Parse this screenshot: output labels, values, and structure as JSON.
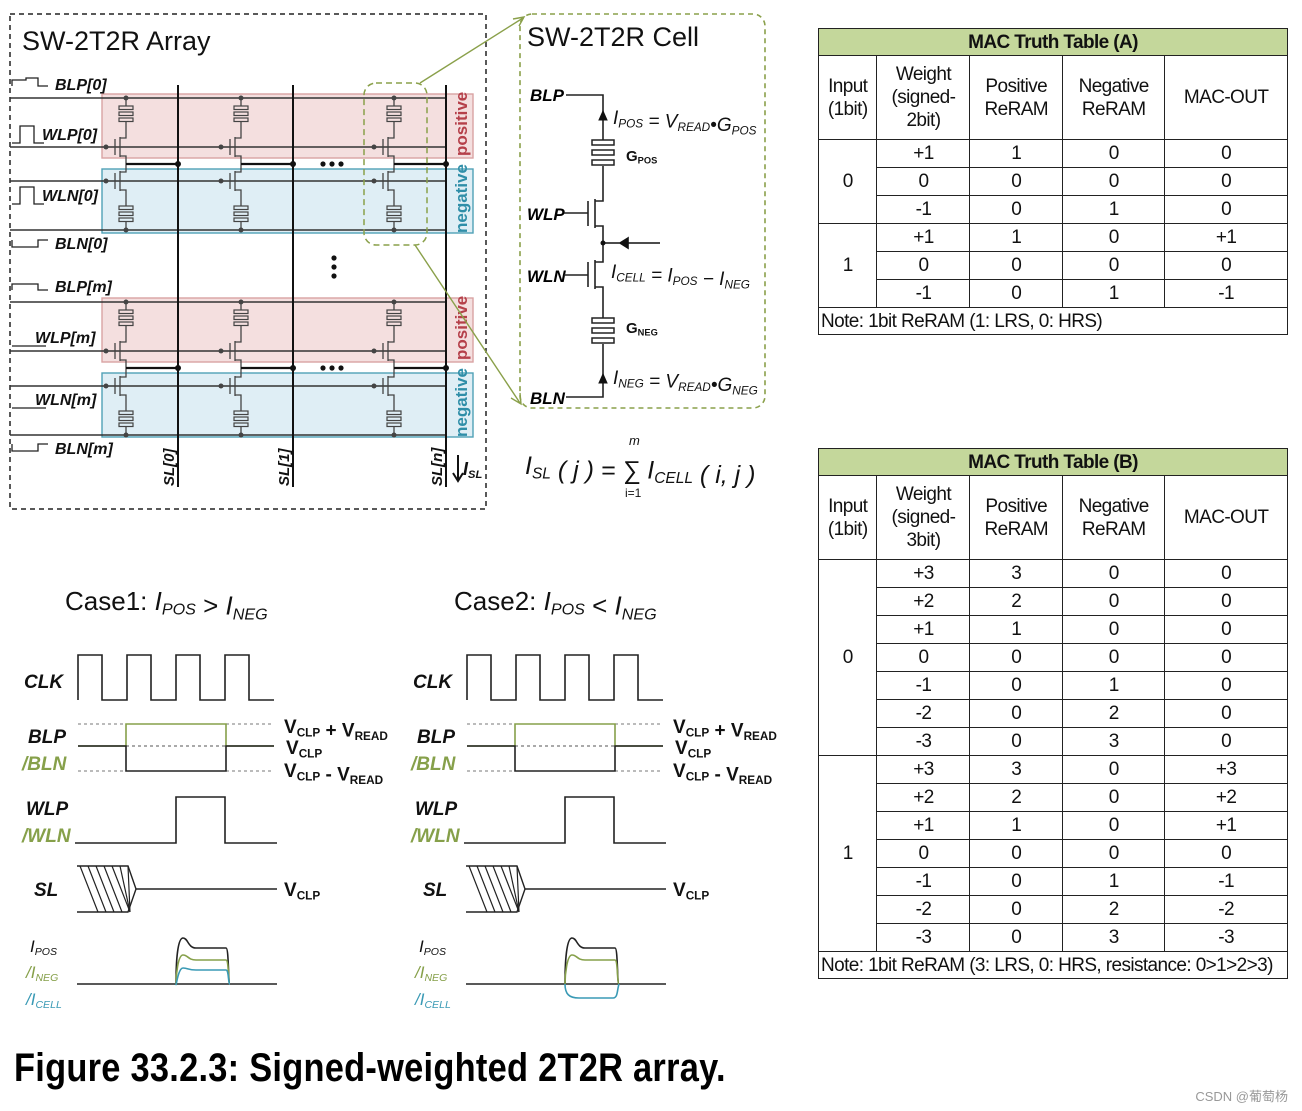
{
  "figure_caption": "Figure 33.2.3: Signed-weighted 2T2R array.",
  "watermark": "CSDN @葡萄杨",
  "colors": {
    "positive_fill": "#f3dcdc",
    "positive_stroke": "#d59a9a",
    "positive_text": "#b5404a",
    "negative_fill": "#dcedf4",
    "negative_stroke": "#3d97b0",
    "negative_text": "#2f8ea8",
    "highlight": "#8aa04a",
    "green_signal": "#86a04a",
    "teal_signal": "#3a9ab5",
    "table_title_fill": "#c4d79b"
  },
  "array": {
    "title": "SW-2T2R Array",
    "row_labels": [
      "BLP[0]",
      "WLP[0]",
      "WLN[0]",
      "BLN[0]",
      "BLP[m]",
      "WLP[m]",
      "WLN[m]",
      "BLN[m]"
    ],
    "column_labels": [
      "SL[0]",
      "SL[1]",
      "SL[n]"
    ],
    "positive_label": "positive",
    "negative_label": "negative",
    "current_label": [
      [
        "I",
        ""
      ],
      [
        "SL",
        "sub"
      ]
    ]
  },
  "cell": {
    "title": "SW-2T2R Cell",
    "terminals": {
      "blp": "BLP",
      "wlp": "WLP",
      "wln": "WLN",
      "bln": "BLN"
    },
    "g_pos": [
      [
        "G",
        ""
      ],
      [
        "POS",
        "sub"
      ]
    ],
    "g_neg": [
      [
        "G",
        ""
      ],
      [
        "NEG",
        "sub"
      ]
    ],
    "eq_pos": [
      [
        "I",
        ""
      ],
      [
        "POS",
        "sub"
      ],
      [
        " = V",
        ""
      ],
      [
        "READ",
        "sub"
      ],
      [
        "•G",
        ""
      ],
      [
        "POS",
        "sub"
      ]
    ],
    "eq_cell": [
      [
        "I",
        ""
      ],
      [
        "CELL",
        "sub"
      ],
      [
        " = I",
        ""
      ],
      [
        "POS",
        "sub"
      ],
      [
        " − I",
        ""
      ],
      [
        "NEG",
        "sub"
      ]
    ],
    "eq_neg": [
      [
        "I",
        ""
      ],
      [
        "NEG",
        "sub"
      ],
      [
        " = V",
        ""
      ],
      [
        "READ",
        "sub"
      ],
      [
        "•G",
        ""
      ],
      [
        "NEG",
        "sub"
      ]
    ],
    "eq_sum": [
      [
        "I",
        ""
      ],
      [
        "SL",
        "sub"
      ],
      [
        " ( j ) = ",
        ""
      ],
      [
        "∑",
        ""
      ],
      [
        " I",
        ""
      ],
      [
        "CELL",
        "sub"
      ],
      [
        " ( i, j )",
        ""
      ]
    ],
    "sum_upper": "m",
    "sum_lower": "i=1"
  },
  "waveforms": [
    {
      "title": [
        [
          "Case1: ",
          ""
        ],
        [
          "I",
          "i"
        ],
        [
          "POS",
          "isub"
        ],
        [
          " > ",
          ""
        ],
        [
          "I",
          "i"
        ],
        [
          "NEG",
          "isub"
        ]
      ],
      "case": "pos_gt_neg"
    },
    {
      "title": [
        [
          "Case2: ",
          ""
        ],
        [
          "I",
          "i"
        ],
        [
          "POS",
          "isub"
        ],
        [
          " < ",
          ""
        ],
        [
          "I",
          "i"
        ],
        [
          "NEG",
          "isub"
        ]
      ],
      "case": "pos_lt_neg"
    }
  ],
  "waveform_labels": {
    "clk": "CLK",
    "blp": "BLP",
    "bln": "/BLN",
    "wlp": "WLP",
    "wln": "/WLN",
    "sl": "SL",
    "ipos": [
      [
        "I",
        ""
      ],
      [
        "POS",
        "sub"
      ]
    ],
    "ineg": [
      [
        "/I",
        ""
      ],
      [
        "NEG",
        "sub"
      ]
    ],
    "icell": [
      [
        "/I",
        ""
      ],
      [
        "CELL",
        "sub"
      ]
    ],
    "v_high": [
      [
        "V",
        ""
      ],
      [
        "CLP",
        "sub"
      ],
      [
        " + V",
        ""
      ],
      [
        "READ",
        "sub"
      ]
    ],
    "v_mid": [
      [
        "V",
        ""
      ],
      [
        "CLP",
        "sub"
      ]
    ],
    "v_low": [
      [
        "V",
        ""
      ],
      [
        "CLP",
        "sub"
      ],
      [
        " - V",
        ""
      ],
      [
        "READ",
        "sub"
      ]
    ],
    "v_sl": [
      [
        "V",
        ""
      ],
      [
        "CLP",
        "sub"
      ]
    ]
  },
  "tables": [
    {
      "title": "MAC Truth Table (A)",
      "headers": [
        "Input\n(1bit)",
        "Weight\n(signed-\n2bit)",
        "Positive\nReRAM",
        "Negative\nReRAM",
        "MAC-OUT"
      ],
      "groups": [
        {
          "input": "0",
          "rows": [
            [
              "+1",
              "1",
              "0",
              "0"
            ],
            [
              "0",
              "0",
              "0",
              "0"
            ],
            [
              "-1",
              "0",
              "1",
              "0"
            ]
          ]
        },
        {
          "input": "1",
          "rows": [
            [
              "+1",
              "1",
              "0",
              "+1"
            ],
            [
              "0",
              "0",
              "0",
              "0"
            ],
            [
              "-1",
              "0",
              "1",
              "-1"
            ]
          ]
        }
      ],
      "note": "Note: 1bit ReRAM (1: LRS, 0: HRS)"
    },
    {
      "title": "MAC Truth Table (B)",
      "headers": [
        "Input\n(1bit)",
        "Weight\n(signed-\n3bit)",
        "Positive\nReRAM",
        "Negative\nReRAM",
        "MAC-OUT"
      ],
      "groups": [
        {
          "input": "0",
          "rows": [
            [
              "+3",
              "3",
              "0",
              "0"
            ],
            [
              "+2",
              "2",
              "0",
              "0"
            ],
            [
              "+1",
              "1",
              "0",
              "0"
            ],
            [
              "0",
              "0",
              "0",
              "0"
            ],
            [
              "-1",
              "0",
              "1",
              "0"
            ],
            [
              "-2",
              "0",
              "2",
              "0"
            ],
            [
              "-3",
              "0",
              "3",
              "0"
            ]
          ]
        },
        {
          "input": "1",
          "rows": [
            [
              "+3",
              "3",
              "0",
              "+3"
            ],
            [
              "+2",
              "2",
              "0",
              "+2"
            ],
            [
              "+1",
              "1",
              "0",
              "+1"
            ],
            [
              "0",
              "0",
              "0",
              "0"
            ],
            [
              "-1",
              "0",
              "1",
              "-1"
            ],
            [
              "-2",
              "0",
              "2",
              "-2"
            ],
            [
              "-3",
              "0",
              "3",
              "-3"
            ]
          ]
        }
      ],
      "note": "Note: 1bit ReRAM (3: LRS, 0: HRS, resistance: 0>1>2>3)"
    }
  ]
}
